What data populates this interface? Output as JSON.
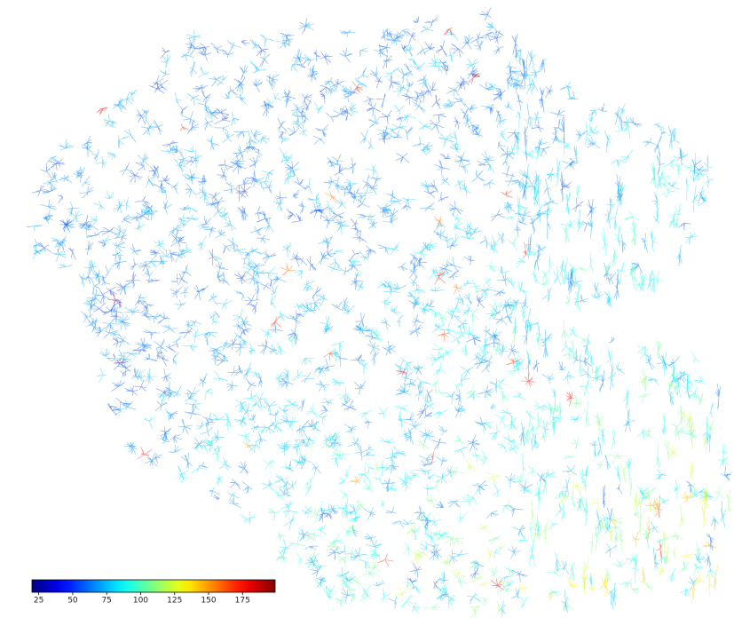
{
  "chart_data": {
    "type": "colorbar",
    "colormap": "jet",
    "clim": [
      20,
      199
    ],
    "ticks": [
      25,
      50,
      75,
      100,
      125,
      150,
      175
    ]
  }
}
